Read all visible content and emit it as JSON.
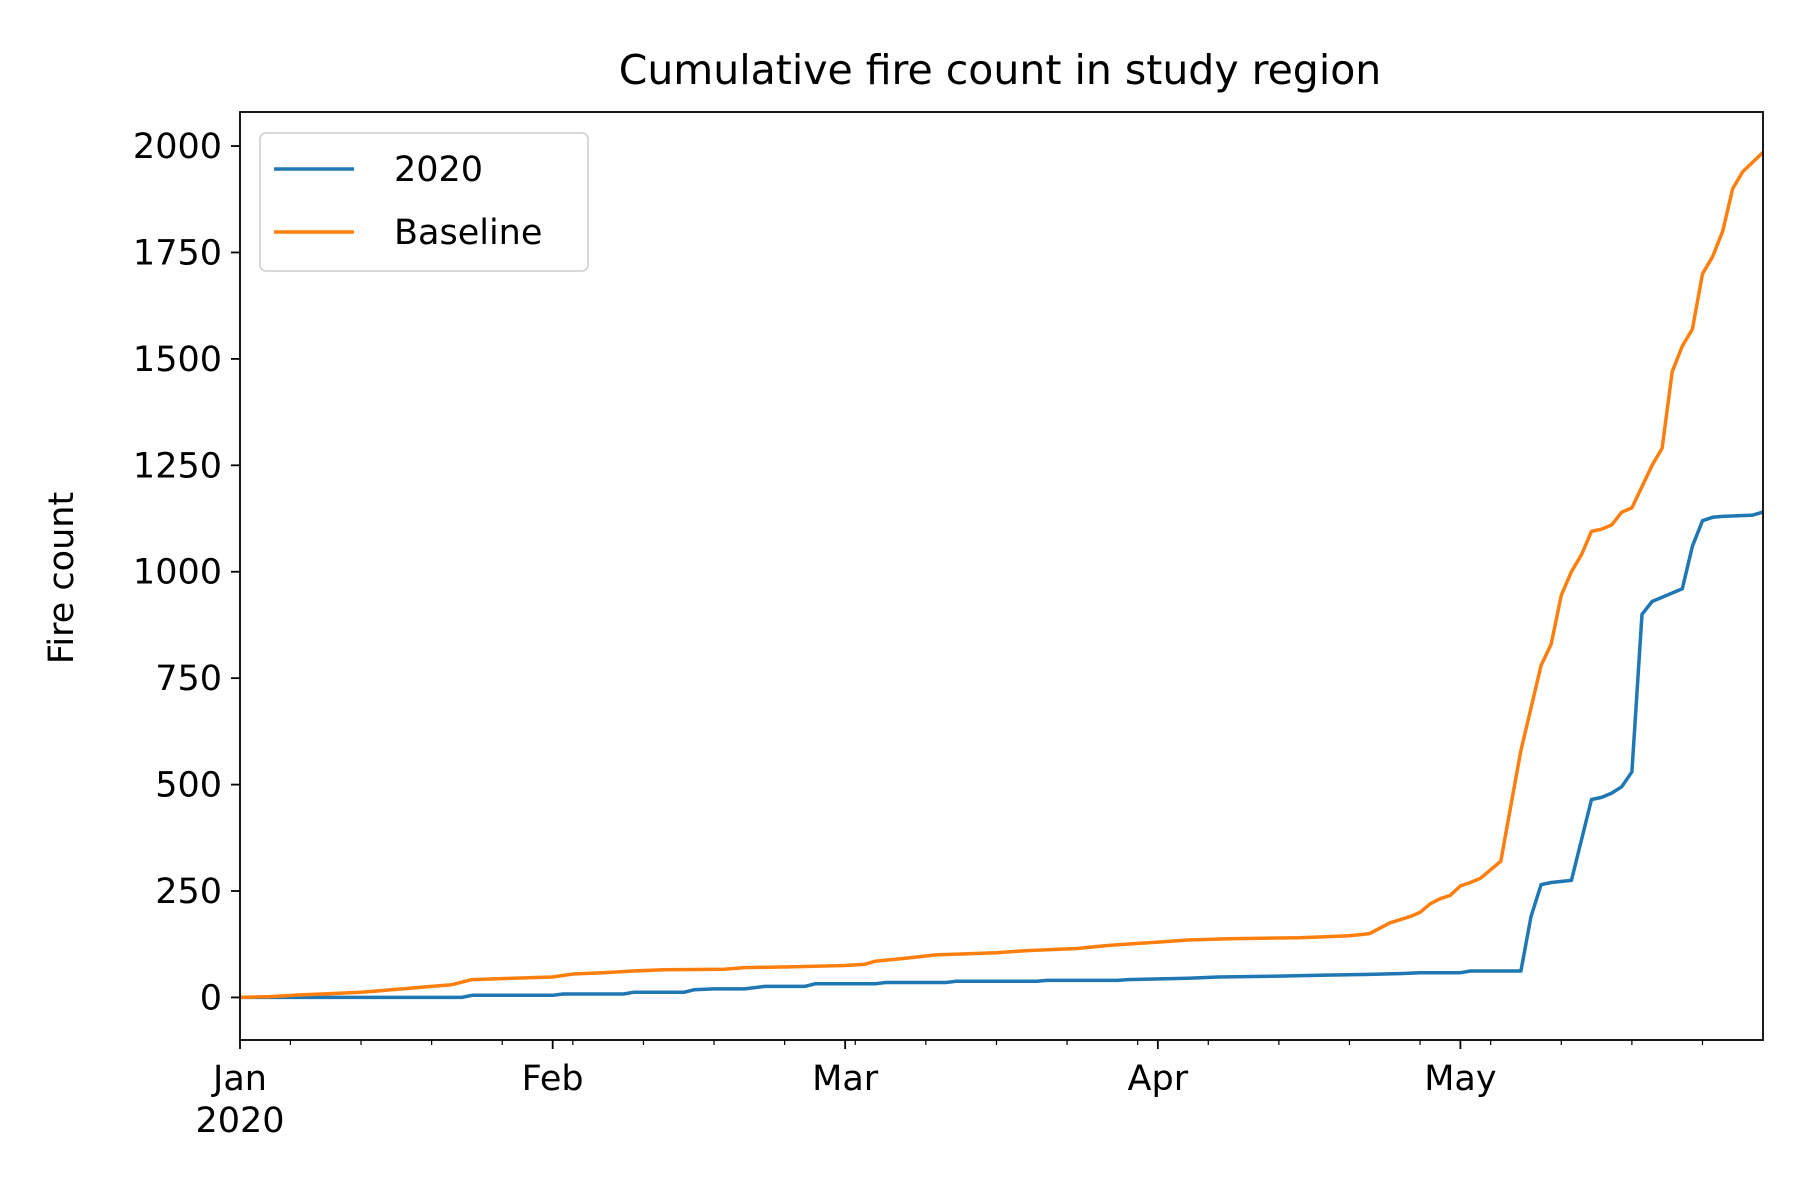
{
  "chart_data": {
    "type": "line",
    "title": "Cumulative fire count in study region",
    "xlabel": "",
    "ylabel": "Fire count",
    "x_range": [
      "2020-01-01",
      "2020-05-31"
    ],
    "ylim": [
      -100,
      2080
    ],
    "y_ticks": [
      0,
      250,
      500,
      750,
      1000,
      1250,
      1500,
      1750,
      2000
    ],
    "x_ticks": [
      {
        "date": "2020-01-01",
        "label": "Jan",
        "sublabel": "2020"
      },
      {
        "date": "2020-02-01",
        "label": "Feb",
        "sublabel": ""
      },
      {
        "date": "2020-03-01",
        "label": "Mar",
        "sublabel": ""
      },
      {
        "date": "2020-04-01",
        "label": "Apr",
        "sublabel": ""
      },
      {
        "date": "2020-05-01",
        "label": "May",
        "sublabel": ""
      }
    ],
    "minor_ticks": [
      "2020-01-06",
      "2020-01-13",
      "2020-01-20",
      "2020-01-27",
      "2020-02-03",
      "2020-02-10",
      "2020-02-17",
      "2020-02-24",
      "2020-03-02",
      "2020-03-09",
      "2020-03-16",
      "2020-03-23",
      "2020-03-30",
      "2020-04-06",
      "2020-04-13",
      "2020-04-20",
      "2020-04-27",
      "2020-05-04",
      "2020-05-11",
      "2020-05-18",
      "2020-05-25"
    ],
    "grid": false,
    "legend_position": "upper-left",
    "series": [
      {
        "name": "2020",
        "color": "#1f77b4",
        "points": [
          [
            "2020-01-01",
            0
          ],
          [
            "2020-01-23",
            0
          ],
          [
            "2020-01-24",
            5
          ],
          [
            "2020-02-01",
            5
          ],
          [
            "2020-02-02",
            8
          ],
          [
            "2020-02-08",
            8
          ],
          [
            "2020-02-09",
            12
          ],
          [
            "2020-02-14",
            12
          ],
          [
            "2020-02-15",
            18
          ],
          [
            "2020-02-17",
            20
          ],
          [
            "2020-02-20",
            20
          ],
          [
            "2020-02-22",
            26
          ],
          [
            "2020-02-26",
            26
          ],
          [
            "2020-02-27",
            32
          ],
          [
            "2020-03-04",
            32
          ],
          [
            "2020-03-05",
            35
          ],
          [
            "2020-03-11",
            35
          ],
          [
            "2020-03-12",
            38
          ],
          [
            "2020-03-20",
            38
          ],
          [
            "2020-03-21",
            40
          ],
          [
            "2020-03-28",
            40
          ],
          [
            "2020-03-29",
            42
          ],
          [
            "2020-04-04",
            45
          ],
          [
            "2020-04-07",
            48
          ],
          [
            "2020-04-13",
            50
          ],
          [
            "2020-04-17",
            52
          ],
          [
            "2020-04-22",
            54
          ],
          [
            "2020-04-25",
            56
          ],
          [
            "2020-04-27",
            58
          ],
          [
            "2020-05-01",
            58
          ],
          [
            "2020-05-02",
            62
          ],
          [
            "2020-05-07",
            62
          ],
          [
            "2020-05-08",
            190
          ],
          [
            "2020-05-09",
            265
          ],
          [
            "2020-05-10",
            270
          ],
          [
            "2020-05-12",
            275
          ],
          [
            "2020-05-14",
            465
          ],
          [
            "2020-05-15",
            470
          ],
          [
            "2020-05-16",
            480
          ],
          [
            "2020-05-17",
            495
          ],
          [
            "2020-05-18",
            530
          ],
          [
            "2020-05-19",
            900
          ],
          [
            "2020-05-20",
            930
          ],
          [
            "2020-05-23",
            960
          ],
          [
            "2020-05-24",
            1060
          ],
          [
            "2020-05-25",
            1120
          ],
          [
            "2020-05-26",
            1128
          ],
          [
            "2020-05-27",
            1130
          ],
          [
            "2020-05-30",
            1133
          ],
          [
            "2020-05-31",
            1140
          ]
        ]
      },
      {
        "name": "Baseline",
        "color": "#ff7f0e",
        "points": [
          [
            "2020-01-01",
            0
          ],
          [
            "2020-01-04",
            2
          ],
          [
            "2020-01-07",
            6
          ],
          [
            "2020-01-10",
            9
          ],
          [
            "2020-01-13",
            12
          ],
          [
            "2020-01-16",
            18
          ],
          [
            "2020-01-18",
            22
          ],
          [
            "2020-01-20",
            26
          ],
          [
            "2020-01-22",
            30
          ],
          [
            "2020-01-24",
            42
          ],
          [
            "2020-01-28",
            45
          ],
          [
            "2020-02-01",
            48
          ],
          [
            "2020-02-03",
            55
          ],
          [
            "2020-02-06",
            58
          ],
          [
            "2020-02-09",
            62
          ],
          [
            "2020-02-12",
            65
          ],
          [
            "2020-02-18",
            66
          ],
          [
            "2020-02-20",
            70
          ],
          [
            "2020-02-25",
            72
          ],
          [
            "2020-03-01",
            75
          ],
          [
            "2020-03-03",
            78
          ],
          [
            "2020-03-04",
            85
          ],
          [
            "2020-03-07",
            92
          ],
          [
            "2020-03-10",
            100
          ],
          [
            "2020-03-16",
            105
          ],
          [
            "2020-03-19",
            110
          ],
          [
            "2020-03-24",
            115
          ],
          [
            "2020-03-27",
            122
          ],
          [
            "2020-04-01",
            130
          ],
          [
            "2020-04-04",
            135
          ],
          [
            "2020-04-08",
            138
          ],
          [
            "2020-04-15",
            140
          ],
          [
            "2020-04-17",
            142
          ],
          [
            "2020-04-20",
            145
          ],
          [
            "2020-04-22",
            150
          ],
          [
            "2020-04-24",
            175
          ],
          [
            "2020-04-26",
            190
          ],
          [
            "2020-04-27",
            200
          ],
          [
            "2020-04-28",
            220
          ],
          [
            "2020-04-29",
            232
          ],
          [
            "2020-04-30",
            240
          ],
          [
            "2020-05-01",
            262
          ],
          [
            "2020-05-02",
            270
          ],
          [
            "2020-05-03",
            280
          ],
          [
            "2020-05-04",
            300
          ],
          [
            "2020-05-05",
            320
          ],
          [
            "2020-05-06",
            450
          ],
          [
            "2020-05-07",
            580
          ],
          [
            "2020-05-08",
            680
          ],
          [
            "2020-05-09",
            780
          ],
          [
            "2020-05-10",
            830
          ],
          [
            "2020-05-11",
            945
          ],
          [
            "2020-05-12",
            1000
          ],
          [
            "2020-05-13",
            1040
          ],
          [
            "2020-05-14",
            1095
          ],
          [
            "2020-05-15",
            1100
          ],
          [
            "2020-05-16",
            1110
          ],
          [
            "2020-05-17",
            1140
          ],
          [
            "2020-05-18",
            1150
          ],
          [
            "2020-05-19",
            1200
          ],
          [
            "2020-05-20",
            1250
          ],
          [
            "2020-05-21",
            1290
          ],
          [
            "2020-05-22",
            1470
          ],
          [
            "2020-05-23",
            1530
          ],
          [
            "2020-05-24",
            1570
          ],
          [
            "2020-05-25",
            1700
          ],
          [
            "2020-05-26",
            1740
          ],
          [
            "2020-05-27",
            1800
          ],
          [
            "2020-05-28",
            1900
          ],
          [
            "2020-05-29",
            1940
          ],
          [
            "2020-05-31",
            1985
          ]
        ]
      }
    ]
  }
}
